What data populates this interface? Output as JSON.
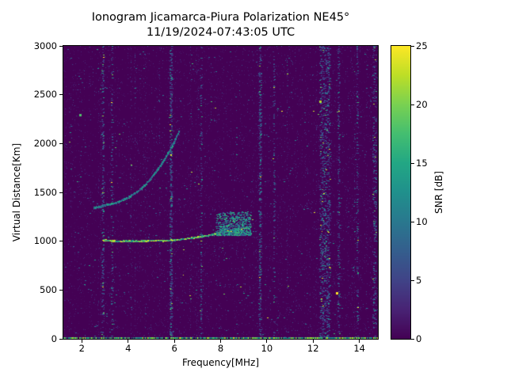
{
  "chart_data": {
    "type": "heatmap",
    "title": "Ionogram Jicamarca-Piura Polarization NE45°",
    "subtitle": "11/19/2024-07:43:05 UTC",
    "xlabel": "Frequency[MHz]",
    "ylabel": "Virtual Distance[Km]",
    "xlim": [
      1.2,
      14.8
    ],
    "ylim": [
      0,
      3000
    ],
    "x_ticks": [
      2,
      4,
      6,
      8,
      10,
      12,
      14
    ],
    "y_ticks": [
      0,
      500,
      1000,
      1500,
      2000,
      2500,
      3000
    ],
    "grid": false,
    "colormap": "viridis",
    "legend": "none",
    "colorbar": {
      "label": "SNR [dB]",
      "range": [
        0,
        25
      ],
      "ticks": [
        0,
        5,
        10,
        15,
        20,
        25
      ]
    },
    "features": {
      "background": "sparse speckle noise mostly 0-6 dB over dark 0 dB background, with vertical columns of varying noise density",
      "ground_echo_line": {
        "km": 0,
        "snr_db": [
          8,
          24
        ],
        "freq_span_mhz": [
          1.2,
          14.8
        ]
      },
      "echo_traces": [
        {
          "name": "F-region first hop",
          "snr_db": [
            10,
            25
          ],
          "jitter_km": 9,
          "density": 1700,
          "points": [
            [
              2.9,
              1010
            ],
            [
              3.5,
              1000
            ],
            [
              4.5,
              1000
            ],
            [
              5.0,
              1005
            ],
            [
              5.5,
              1005
            ],
            [
              6.0,
              1010
            ],
            [
              6.5,
              1025
            ],
            [
              7.0,
              1040
            ],
            [
              7.5,
              1060
            ],
            [
              8.0,
              1085
            ],
            [
              8.5,
              1110
            ],
            [
              9.1,
              1140
            ]
          ]
        },
        {
          "name": "F-region second hop",
          "snr_db": [
            5,
            16
          ],
          "jitter_km": 14,
          "density": 750,
          "points": [
            [
              2.5,
              1340
            ],
            [
              3.0,
              1365
            ],
            [
              3.5,
              1395
            ],
            [
              4.0,
              1445
            ],
            [
              4.5,
              1525
            ],
            [
              5.0,
              1645
            ],
            [
              5.5,
              1810
            ],
            [
              5.9,
              1975
            ],
            [
              6.2,
              2130
            ]
          ]
        }
      ],
      "spread_patch": {
        "freq_mhz": [
          7.8,
          9.3
        ],
        "km": [
          1060,
          1300
        ],
        "snr_db": [
          5,
          18
        ],
        "density": 750
      },
      "interference_bands": [
        {
          "mhz": 2.9,
          "width_mhz": 0.08,
          "strength": 0.5
        },
        {
          "mhz": 3.3,
          "width_mhz": 0.06,
          "strength": 0.25
        },
        {
          "mhz": 5.85,
          "width_mhz": 0.09,
          "strength": 1.0
        },
        {
          "mhz": 7.15,
          "width_mhz": 0.06,
          "strength": 0.3
        },
        {
          "mhz": 9.7,
          "width_mhz": 0.09,
          "strength": 0.8
        },
        {
          "mhz": 10.3,
          "width_mhz": 0.05,
          "strength": 0.25
        },
        {
          "mhz": 12.5,
          "width_mhz": 0.45,
          "strength": 1.0
        },
        {
          "mhz": 13.1,
          "width_mhz": 0.07,
          "strength": 0.4
        },
        {
          "mhz": 13.9,
          "width_mhz": 0.06,
          "strength": 0.3
        },
        {
          "mhz": 14.65,
          "width_mhz": 0.15,
          "strength": 0.6
        }
      ],
      "hotspots": [
        {
          "mhz": 13.05,
          "km": 470,
          "snr_db": 25
        },
        {
          "mhz": 12.3,
          "km": 2430,
          "snr_db": 22
        },
        {
          "mhz": 1.95,
          "km": 2290,
          "snr_db": 18
        }
      ]
    }
  }
}
